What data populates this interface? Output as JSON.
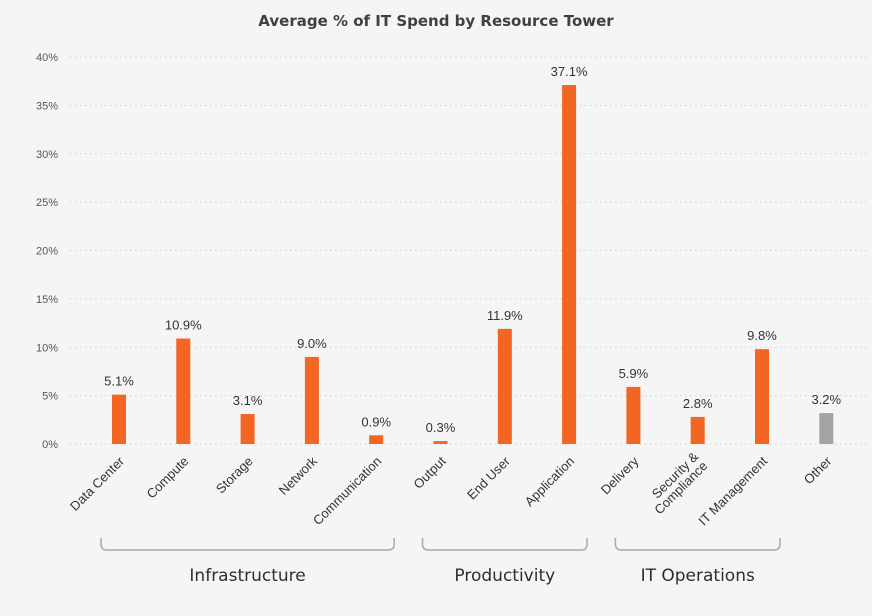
{
  "chart_data": {
    "type": "bar",
    "title": "Average % of IT Spend by Resource Tower",
    "xlabel": "",
    "ylabel": "",
    "ylim": [
      0,
      40
    ],
    "yticks": [
      0,
      5,
      10,
      15,
      20,
      25,
      30,
      35,
      40
    ],
    "ytick_format": "%",
    "grid": true,
    "legend": "none",
    "categories": [
      "Data Center",
      "Compute",
      "Storage",
      "Network",
      "Communication",
      "Output",
      "End User",
      "Application",
      "Delivery",
      "Security &\nCompliance",
      "IT Management",
      "Other"
    ],
    "values": [
      5.1,
      10.9,
      3.1,
      9.0,
      0.9,
      0.3,
      11.9,
      37.1,
      5.9,
      2.8,
      9.8,
      3.2
    ],
    "data_labels": [
      "5.1%",
      "10.9%",
      "3.1%",
      "9.0%",
      "0.9%",
      "0.3%",
      "11.9%",
      "37.1%",
      "5.9%",
      "2.8%",
      "9.8%",
      "3.2%"
    ],
    "groups": [
      {
        "name": "Infrastructure",
        "categories": [
          "Data Center",
          "Compute",
          "Storage",
          "Network",
          "Communication"
        ]
      },
      {
        "name": "Productivity",
        "categories": [
          "Output",
          "End User",
          "Application"
        ]
      },
      {
        "name": "IT Operations",
        "categories": [
          "Delivery",
          "Security &\nCompliance",
          "IT Management"
        ]
      }
    ],
    "colors": {
      "bar": "#f26522",
      "other_bar": "#a3a3a3",
      "grid": "#cfcfcf",
      "bracket": "#a8a8a8",
      "background": "#f5f5f5"
    }
  }
}
